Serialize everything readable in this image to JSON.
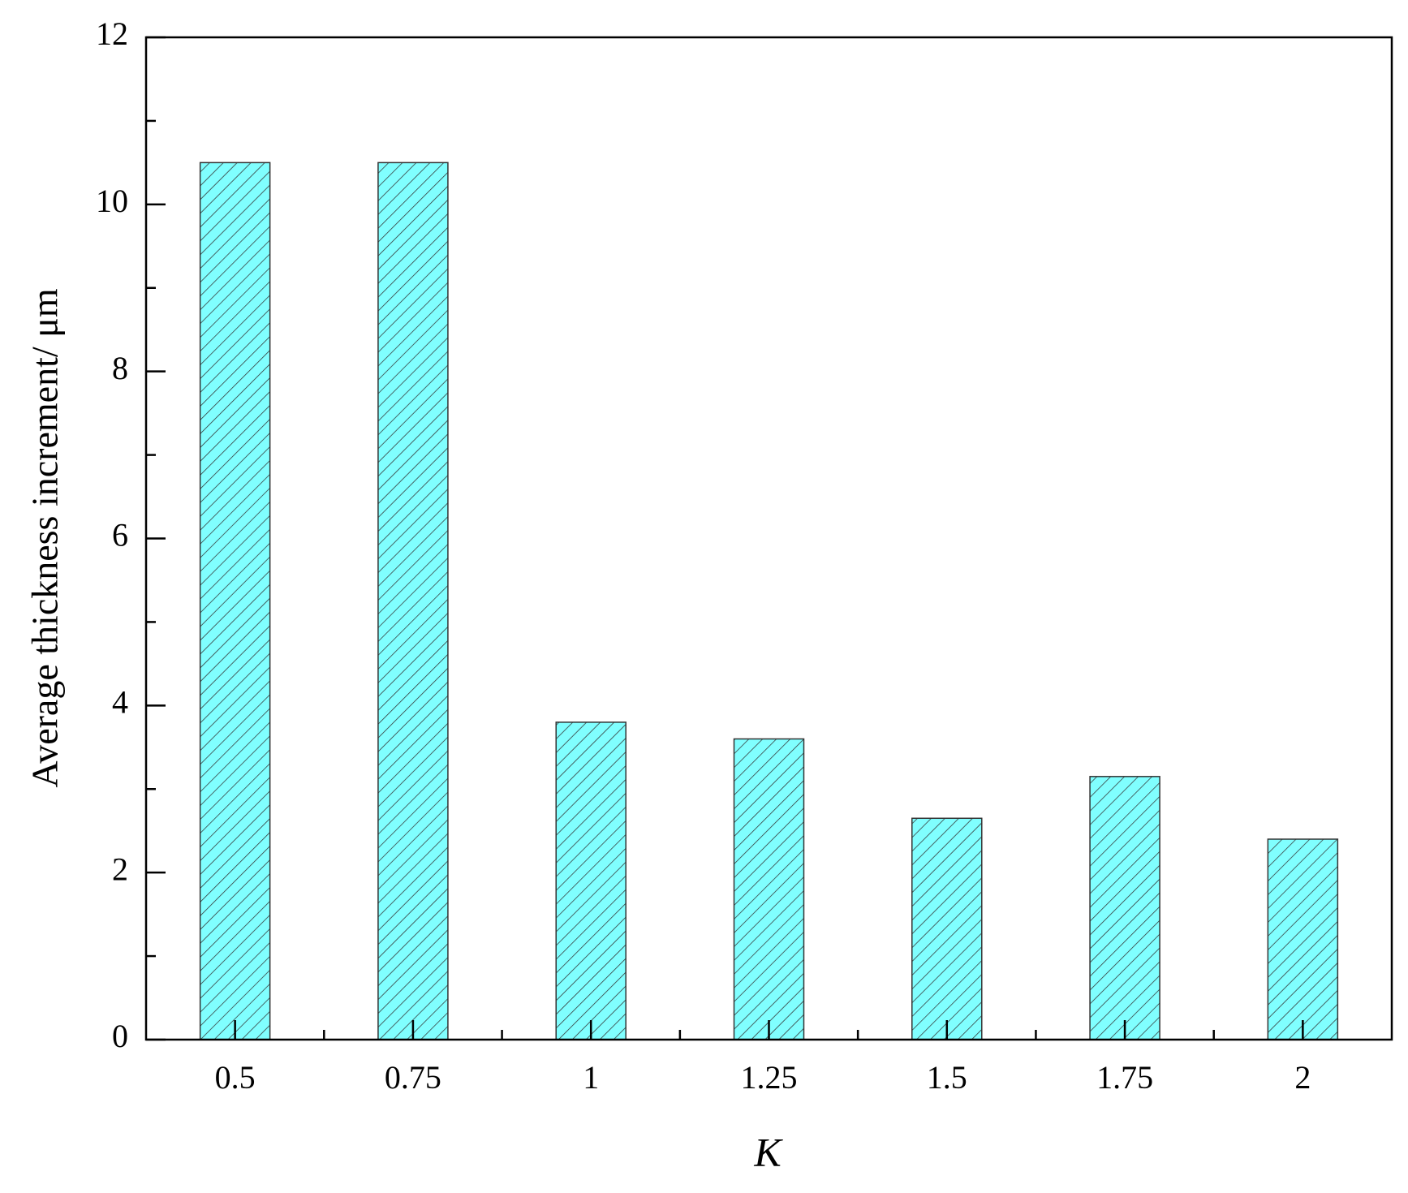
{
  "chart_data": {
    "type": "bar",
    "x_label": "K",
    "y_label": "Average thickness increment/  μm",
    "categories": [
      "0.5",
      "0.75",
      "1",
      "1.25",
      "1.5",
      "1.75",
      "2"
    ],
    "values": [
      10.5,
      10.5,
      3.8,
      3.6,
      2.65,
      3.15,
      2.4
    ],
    "color": "#80ffff",
    "ylim": [
      0,
      12
    ],
    "yticks": [
      0,
      2,
      4,
      6,
      8,
      10,
      12
    ],
    "grid": false
  }
}
